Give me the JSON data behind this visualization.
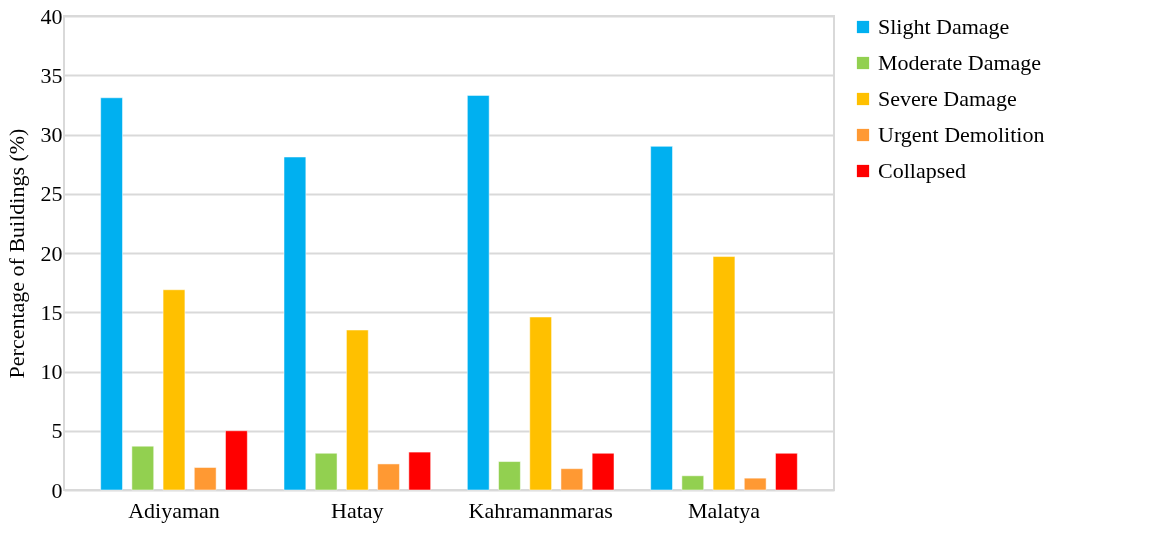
{
  "chart_data": {
    "type": "bar",
    "ylabel": "Percentage of Buildings (%)",
    "categories": [
      "Adiyaman",
      "Hatay",
      "Kahramanmaras",
      "Malatya"
    ],
    "series": [
      {
        "name": "Slight Damage",
        "color": "#00b0f0",
        "values": [
          33.1,
          28.1,
          33.3,
          29.0
        ]
      },
      {
        "name": "Moderate Damage",
        "color": "#92d050",
        "values": [
          3.7,
          3.1,
          2.4,
          1.2
        ]
      },
      {
        "name": "Severe Damage",
        "color": "#ffc000",
        "values": [
          16.9,
          13.5,
          14.6,
          19.7
        ]
      },
      {
        "name": "Urgent Demolition",
        "color": "#ff9933",
        "values": [
          1.9,
          2.2,
          1.8,
          1.0
        ]
      },
      {
        "name": "Collapsed",
        "color": "#ff0000",
        "values": [
          5.0,
          3.2,
          3.1,
          3.1
        ]
      }
    ],
    "ylim": [
      0,
      40
    ],
    "yticks": [
      0,
      5,
      10,
      15,
      20,
      25,
      30,
      35,
      40
    ],
    "grid": "y",
    "legend": "right"
  }
}
